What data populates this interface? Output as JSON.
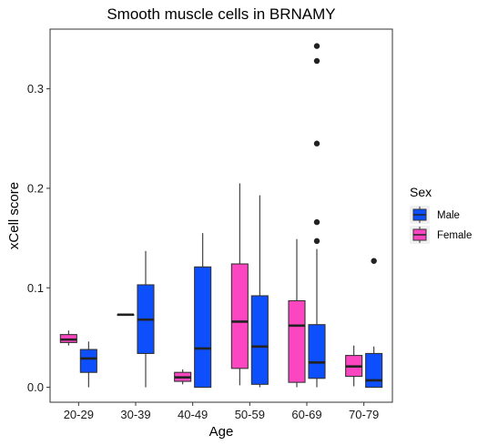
{
  "chart_data": {
    "type": "boxplot",
    "title": "Smooth muscle cells in BRNAMY",
    "xlabel": "Age",
    "ylabel": "xCell score",
    "ylim": [
      -0.015,
      0.36
    ],
    "yticks": [
      0.0,
      0.1,
      0.2,
      0.3
    ],
    "ytick_labels": [
      "0.0",
      "0.1",
      "0.2",
      "0.3"
    ],
    "categories": [
      "20-29",
      "30-39",
      "40-49",
      "50-59",
      "60-69",
      "70-79"
    ],
    "legend": {
      "title": "Sex",
      "placement": "right",
      "entries": [
        {
          "label": "Male",
          "color": "#0d4ffc"
        },
        {
          "label": "Female",
          "color": "#fc46c1"
        }
      ]
    },
    "grid": false,
    "series": [
      {
        "name": "Female",
        "color": "#fc46c1",
        "boxes": [
          {
            "category": "20-29",
            "min": 0.042,
            "q1": 0.045,
            "median": 0.048,
            "q3": 0.053,
            "max": 0.057,
            "outliers": []
          },
          {
            "category": "30-39",
            "min": 0.073,
            "q1": 0.073,
            "median": 0.073,
            "q3": 0.073,
            "max": 0.073,
            "outliers": []
          },
          {
            "category": "40-49",
            "min": 0.003,
            "q1": 0.006,
            "median": 0.01,
            "q3": 0.015,
            "max": 0.018,
            "outliers": []
          },
          {
            "category": "50-59",
            "min": 0.002,
            "q1": 0.019,
            "median": 0.066,
            "q3": 0.124,
            "max": 0.205,
            "outliers": []
          },
          {
            "category": "60-69",
            "min": 0.0,
            "q1": 0.005,
            "median": 0.062,
            "q3": 0.087,
            "max": 0.149,
            "outliers": []
          },
          {
            "category": "70-79",
            "min": 0.001,
            "q1": 0.011,
            "median": 0.021,
            "q3": 0.032,
            "max": 0.042,
            "outliers": []
          }
        ]
      },
      {
        "name": "Male",
        "color": "#0d4ffc",
        "boxes": [
          {
            "category": "20-29",
            "min": 0.0,
            "q1": 0.015,
            "median": 0.029,
            "q3": 0.038,
            "max": 0.046,
            "outliers": []
          },
          {
            "category": "30-39",
            "min": 0.0,
            "q1": 0.034,
            "median": 0.068,
            "q3": 0.103,
            "max": 0.137,
            "outliers": []
          },
          {
            "category": "40-49",
            "min": 0.0,
            "q1": 0.0,
            "median": 0.039,
            "q3": 0.121,
            "max": 0.155,
            "outliers": []
          },
          {
            "category": "50-59",
            "min": 0.0,
            "q1": 0.003,
            "median": 0.041,
            "q3": 0.092,
            "max": 0.193,
            "outliers": []
          },
          {
            "category": "60-69",
            "min": 0.0,
            "q1": 0.009,
            "median": 0.025,
            "q3": 0.063,
            "max": 0.139,
            "outliers": [
              0.147,
              0.166,
              0.245,
              0.328,
              0.343
            ]
          },
          {
            "category": "70-79",
            "min": 0.0,
            "q1": 0.0,
            "median": 0.007,
            "q3": 0.034,
            "max": 0.041,
            "outliers": [
              0.127
            ]
          }
        ]
      }
    ]
  }
}
